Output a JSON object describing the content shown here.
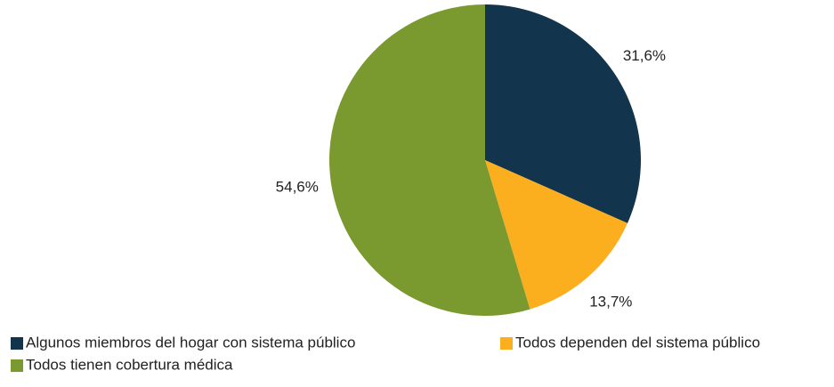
{
  "chart_data": {
    "type": "pie",
    "categories": [
      "Algunos miembros del hogar con sistema público",
      "Todos dependen del sistema público",
      "Todos tienen cobertura médica"
    ],
    "values": [
      31.6,
      13.7,
      54.6
    ],
    "value_labels": [
      "31,6%",
      "13,7%",
      "54,6%"
    ],
    "colors": [
      "#12344d",
      "#fbaf1f",
      "#7a9a30"
    ],
    "legend": "bottom"
  }
}
